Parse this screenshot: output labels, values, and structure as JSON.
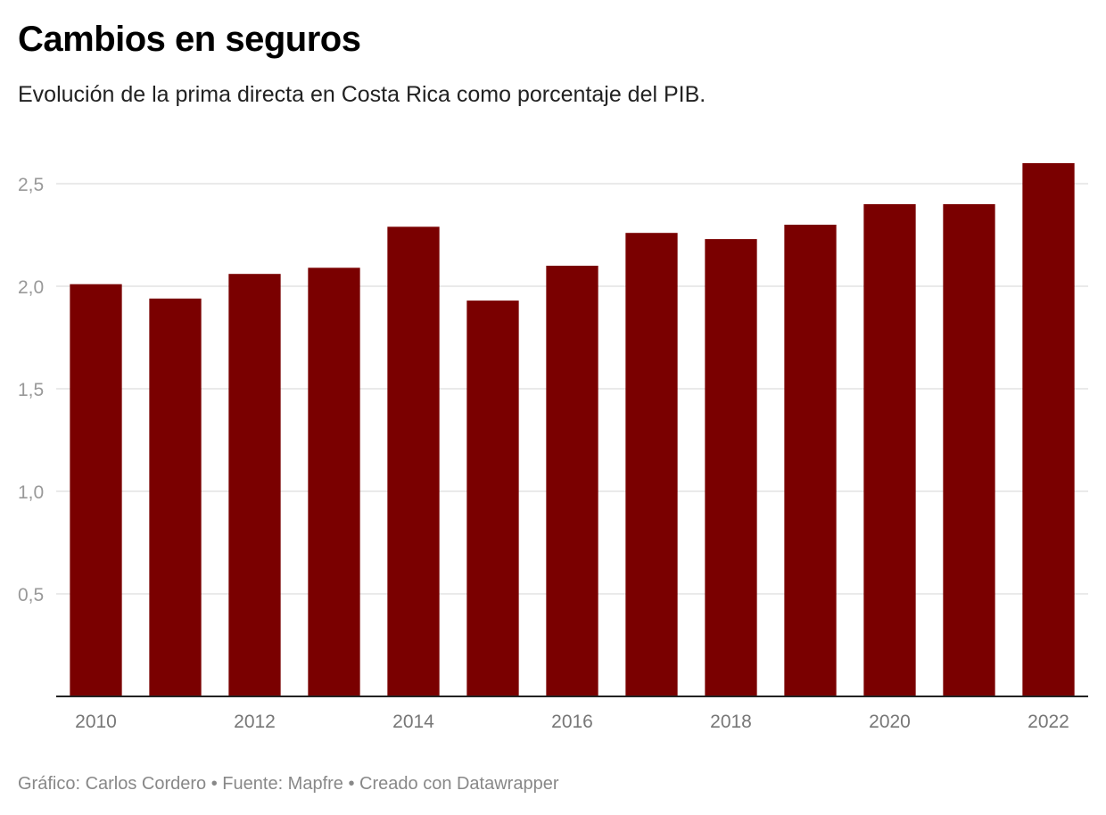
{
  "header": {
    "title": "Cambios en seguros",
    "subtitle": "Evolución de la prima directa en Costa Rica como porcentaje del PIB."
  },
  "footer": {
    "text": "Gráfico: Carlos Cordero • Fuente: Mapfre • Creado con Datawrapper"
  },
  "colors": {
    "bar": "#7a0000",
    "grid": "#e3e3e3",
    "axis": "#222222"
  },
  "chart_data": {
    "type": "bar",
    "title": "Cambios en seguros",
    "subtitle": "Evolución de la prima directa en Costa Rica como porcentaje del PIB.",
    "xlabel": "",
    "ylabel": "",
    "categories": [
      "2010",
      "2011",
      "2012",
      "2013",
      "2014",
      "2015",
      "2016",
      "2017",
      "2018",
      "2019",
      "2020",
      "2021",
      "2022"
    ],
    "values": [
      2.01,
      1.94,
      2.06,
      2.09,
      2.29,
      1.93,
      2.1,
      2.26,
      2.23,
      2.3,
      2.4,
      2.4,
      2.6
    ],
    "ylim": [
      0,
      2.6
    ],
    "yticks": [
      0.5,
      1.0,
      1.5,
      2.0,
      2.5
    ],
    "ytick_labels": [
      "0,5",
      "1,0",
      "1,5",
      "2,0",
      "2,5"
    ],
    "xtick_labels_shown": [
      "2010",
      "2012",
      "2014",
      "2016",
      "2018",
      "2020",
      "2022"
    ],
    "grid": true,
    "legend": "none"
  }
}
